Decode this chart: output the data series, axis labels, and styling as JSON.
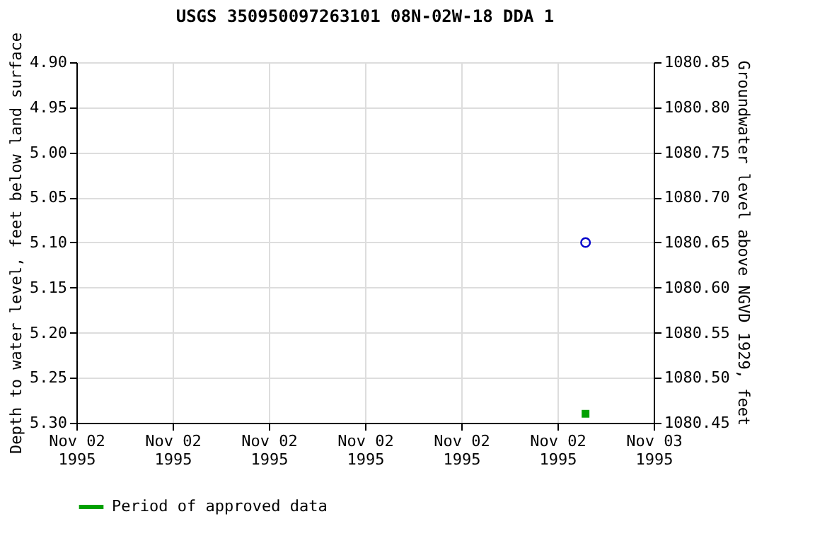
{
  "chart_data": {
    "type": "scatter",
    "title": "USGS 350950097263101 08N-02W-18 DDA 1",
    "ylabel": "Depth to water level, feet below land surface",
    "y2label": "Groundwater level above NGVD 1929, feet",
    "x": [
      "1995-11-02T21:10"
    ],
    "series": [
      {
        "color": "#0000cc",
        "values": [
          5.1
        ],
        "marker": "circle"
      },
      {
        "name": "Period of approved data",
        "color": "#00a000",
        "values": [
          5.29
        ],
        "marker": "square"
      }
    ],
    "xlim": [
      "1995-11-02T00:00",
      "1995-11-03T00:00"
    ],
    "xticks": [
      {
        "value": "1995-11-02T00:00",
        "label": "Nov 02\n1995"
      },
      {
        "value": "1995-11-02T04:00",
        "label": "Nov 02\n1995"
      },
      {
        "value": "1995-11-02T08:00",
        "label": "Nov 02\n1995"
      },
      {
        "value": "1995-11-02T12:00",
        "label": "Nov 02\n1995"
      },
      {
        "value": "1995-11-02T16:00",
        "label": "Nov 02\n1995"
      },
      {
        "value": "1995-11-02T20:00",
        "label": "Nov 02\n1995"
      },
      {
        "value": "1995-11-03T00:00",
        "label": "Nov 03\n1995"
      }
    ],
    "ylim": [
      5.3,
      4.9
    ],
    "yticks": [
      {
        "value": 4.9,
        "label": "4.90"
      },
      {
        "value": 4.95,
        "label": "4.95"
      },
      {
        "value": 5.0,
        "label": "5.00"
      },
      {
        "value": 5.05,
        "label": "5.05"
      },
      {
        "value": 5.1,
        "label": "5.10"
      },
      {
        "value": 5.15,
        "label": "5.15"
      },
      {
        "value": 5.2,
        "label": "5.20"
      },
      {
        "value": 5.25,
        "label": "5.25"
      },
      {
        "value": 5.3,
        "label": "5.30"
      }
    ],
    "y2lim": [
      1080.45,
      1080.85
    ],
    "y2ticks": [
      {
        "value": 1080.45,
        "label": "1080.45"
      },
      {
        "value": 1080.5,
        "label": "1080.50"
      },
      {
        "value": 1080.55,
        "label": "1080.55"
      },
      {
        "value": 1080.6,
        "label": "1080.60"
      },
      {
        "value": 1080.65,
        "label": "1080.65"
      },
      {
        "value": 1080.7,
        "label": "1080.70"
      },
      {
        "value": 1080.75,
        "label": "1080.75"
      },
      {
        "value": 1080.8,
        "label": "1080.80"
      },
      {
        "value": 1080.85,
        "label": "1080.85"
      }
    ],
    "grid": true,
    "legend": "bottom"
  }
}
